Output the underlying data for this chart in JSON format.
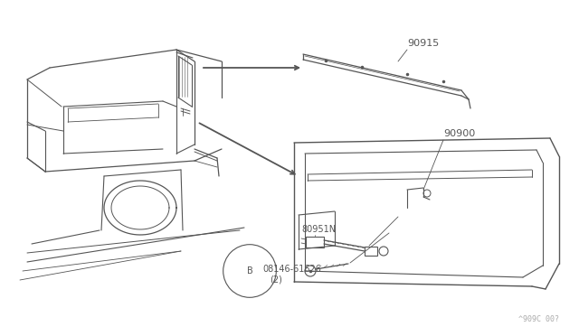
{
  "bg_color": "#ffffff",
  "line_color": "#555555",
  "fig_width": 6.4,
  "fig_height": 3.72,
  "dpi": 100,
  "watermark": "^909C 00?",
  "label_90915": "90915",
  "label_90900": "90900",
  "label_80951N": "80951N",
  "label_screw": "08146-61626",
  "label_screw2": "(2)"
}
